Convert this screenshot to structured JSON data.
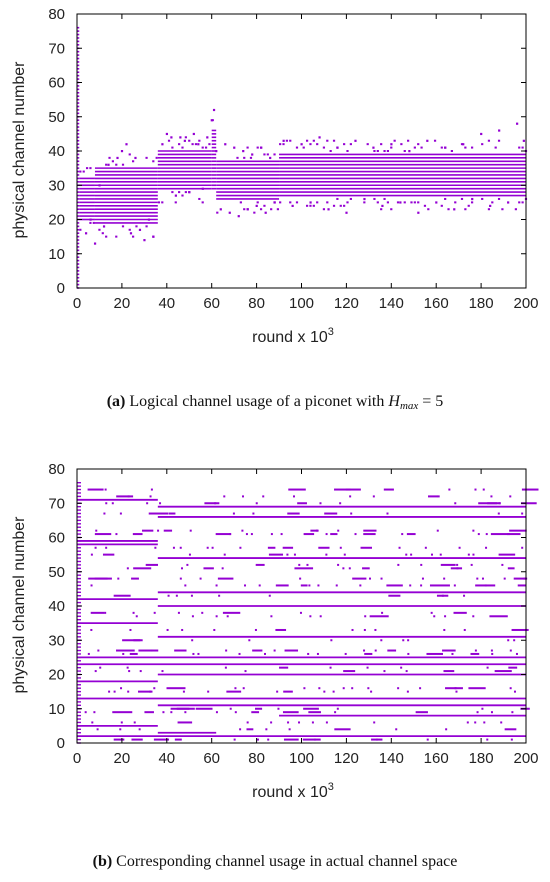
{
  "chart_data": [
    {
      "type": "scatter",
      "panel": "a",
      "xlabel": "round x 10",
      "xlabel_exp": "3",
      "ylabel": "physical channel number",
      "xlim": [
        0,
        200
      ],
      "ylim": [
        0,
        80
      ],
      "x_ticks": [
        0,
        20,
        40,
        60,
        80,
        100,
        120,
        140,
        160,
        180,
        200
      ],
      "y_ticks": [
        0,
        10,
        20,
        30,
        40,
        50,
        60,
        70,
        80
      ],
      "color": "#9400D3",
      "dense_bands": [
        {
          "x_start": 0,
          "x_end": 1,
          "ch_min": 0,
          "ch_max": 76
        },
        {
          "x_start": 1,
          "x_end": 8,
          "ch_min": 20,
          "ch_max": 32
        },
        {
          "x_start": 8,
          "x_end": 36,
          "ch_min": 19,
          "ch_max": 35
        },
        {
          "x_start": 36,
          "x_end": 60,
          "ch_min": 29,
          "ch_max": 40
        },
        {
          "x_start": 60,
          "x_end": 62,
          "ch_min": 29,
          "ch_max": 46
        },
        {
          "x_start": 62,
          "x_end": 90,
          "ch_min": 26,
          "ch_max": 37
        },
        {
          "x_start": 90,
          "x_end": 200,
          "ch_min": 27,
          "ch_max": 39
        }
      ],
      "outliers": [
        [
          4,
          16
        ],
        [
          6,
          20
        ],
        [
          8,
          13
        ],
        [
          10,
          30
        ],
        [
          12,
          18
        ],
        [
          14,
          36
        ],
        [
          18,
          38
        ],
        [
          20,
          40
        ],
        [
          22,
          42
        ],
        [
          24,
          16
        ],
        [
          26,
          38
        ],
        [
          28,
          17
        ],
        [
          30,
          14
        ],
        [
          32,
          20
        ],
        [
          34,
          15
        ],
        [
          38,
          42
        ],
        [
          40,
          45
        ],
        [
          42,
          44
        ],
        [
          44,
          27
        ],
        [
          46,
          44
        ],
        [
          48,
          43
        ],
        [
          50,
          28
        ],
        [
          52,
          45
        ],
        [
          54,
          42
        ],
        [
          56,
          29
        ],
        [
          58,
          44
        ],
        [
          60,
          49
        ],
        [
          61,
          52
        ],
        [
          62,
          40
        ],
        [
          64,
          23
        ],
        [
          66,
          42
        ],
        [
          68,
          22
        ],
        [
          70,
          41
        ],
        [
          72,
          21
        ],
        [
          74,
          40
        ],
        [
          76,
          23
        ],
        [
          78,
          39
        ],
        [
          80,
          24
        ],
        [
          82,
          41
        ],
        [
          84,
          22
        ],
        [
          86,
          38
        ],
        [
          88,
          25
        ],
        [
          92,
          43
        ],
        [
          96,
          24
        ],
        [
          100,
          42
        ],
        [
          104,
          25
        ],
        [
          108,
          44
        ],
        [
          112,
          23
        ],
        [
          116,
          41
        ],
        [
          120,
          22
        ],
        [
          124,
          43
        ],
        [
          128,
          26
        ],
        [
          132,
          41
        ],
        [
          136,
          24
        ],
        [
          140,
          42
        ],
        [
          144,
          25
        ],
        [
          148,
          40
        ],
        [
          152,
          22
        ],
        [
          156,
          43
        ],
        [
          160,
          25
        ],
        [
          164,
          41
        ],
        [
          168,
          23
        ],
        [
          172,
          42
        ],
        [
          176,
          26
        ],
        [
          180,
          45
        ],
        [
          184,
          24
        ],
        [
          188,
          46
        ],
        [
          192,
          25
        ],
        [
          196,
          48
        ],
        [
          199,
          43
        ]
      ]
    },
    {
      "type": "scatter",
      "panel": "b",
      "xlabel": "round x 10",
      "xlabel_exp": "3",
      "ylabel": "physical channel number",
      "xlim": [
        0,
        200
      ],
      "ylim": [
        0,
        80
      ],
      "x_ticks": [
        0,
        20,
        40,
        60,
        80,
        100,
        120,
        140,
        160,
        180,
        200
      ],
      "y_ticks": [
        0,
        10,
        20,
        30,
        40,
        50,
        60,
        70,
        80
      ],
      "color": "#9400D3",
      "channel_lines": [
        {
          "ch": 71,
          "x_start": 0,
          "x_end": 36
        },
        {
          "ch": 69,
          "x_start": 36,
          "x_end": 200
        },
        {
          "ch": 66,
          "x_start": 36,
          "x_end": 200
        },
        {
          "ch": 59,
          "x_start": 0,
          "x_end": 36
        },
        {
          "ch": 58,
          "x_start": 0,
          "x_end": 36
        },
        {
          "ch": 54,
          "x_start": 36,
          "x_end": 200
        },
        {
          "ch": 44,
          "x_start": 36,
          "x_end": 200
        },
        {
          "ch": 42,
          "x_start": 0,
          "x_end": 36
        },
        {
          "ch": 40,
          "x_start": 36,
          "x_end": 200
        },
        {
          "ch": 35,
          "x_start": 0,
          "x_end": 36
        },
        {
          "ch": 31,
          "x_start": 36,
          "x_end": 200
        },
        {
          "ch": 25,
          "x_start": 0,
          "x_end": 200
        },
        {
          "ch": 23,
          "x_start": 0,
          "x_end": 200
        },
        {
          "ch": 20,
          "x_start": 36,
          "x_end": 200
        },
        {
          "ch": 18,
          "x_start": 0,
          "x_end": 36
        },
        {
          "ch": 13,
          "x_start": 0,
          "x_end": 200
        },
        {
          "ch": 11,
          "x_start": 36,
          "x_end": 200
        },
        {
          "ch": 8,
          "x_start": 90,
          "x_end": 200
        },
        {
          "ch": 5,
          "x_start": 0,
          "x_end": 36
        },
        {
          "ch": 3,
          "x_start": 36,
          "x_end": 62
        },
        {
          "ch": 2,
          "x_start": 0,
          "x_end": 200
        }
      ],
      "scattered_channels": [
        74,
        72,
        70,
        67,
        62,
        61,
        57,
        55,
        52,
        51,
        48,
        46,
        43,
        38,
        37,
        33,
        30,
        27,
        26,
        22,
        21,
        16,
        15,
        10,
        9,
        6,
        4,
        1
      ],
      "left_edge_band": {
        "x": 0,
        "ch_min": 0,
        "ch_max": 76
      }
    }
  ],
  "captions": {
    "a": {
      "label": "(a)",
      "text": " Logical channel usage of a piconet with ",
      "var": "H",
      "sub": "max",
      "eq": " = 5"
    },
    "b": {
      "label": "(b)",
      "text": " Corresponding channel usage in actual channel space"
    }
  }
}
